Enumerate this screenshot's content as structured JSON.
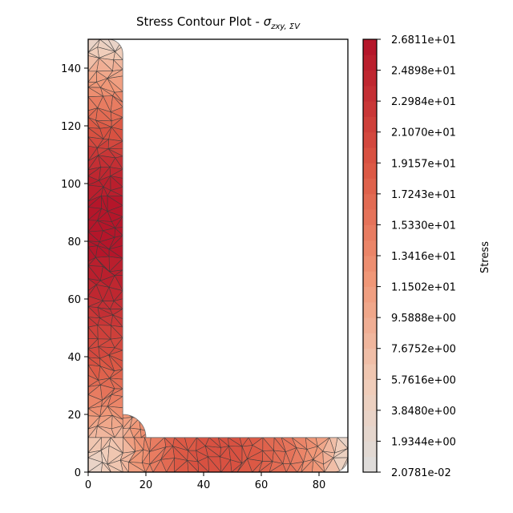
{
  "chart_data": {
    "type": "heatmap",
    "title": {
      "prefix": "Stress Contour Plot - ",
      "symbol": "σ",
      "subscript": "zxy, ΣV"
    },
    "xlabel": "",
    "ylabel": "",
    "xlim": [
      0,
      90
    ],
    "ylim": [
      0,
      150
    ],
    "x_ticks": [
      0,
      20,
      40,
      60,
      80
    ],
    "y_ticks": [
      0,
      20,
      40,
      60,
      80,
      100,
      120,
      140
    ],
    "section": {
      "shape": "L-angle",
      "leg_height": 150,
      "leg_width": 90,
      "thickness": 12,
      "root_radius": 8,
      "toe_radius": 5,
      "mesh_visible": true
    },
    "colorbar": {
      "label": "Stress",
      "ticks": [
        "2.0781e-02",
        "1.9344e+00",
        "3.8480e+00",
        "5.7616e+00",
        "7.6752e+00",
        "9.5888e+00",
        "1.1502e+01",
        "1.3416e+01",
        "1.5330e+01",
        "1.7243e+01",
        "1.9157e+01",
        "2.1070e+01",
        "2.2984e+01",
        "2.4898e+01",
        "2.6811e+01"
      ],
      "min": 0.020781,
      "max": 26.811,
      "levels": 28,
      "colormap": "coolwarm-upper (light grey to dark red)"
    },
    "stress_profile": {
      "vertical_leg": {
        "y": [
          0,
          10,
          20,
          30,
          40,
          50,
          60,
          70,
          80,
          90,
          100,
          110,
          120,
          130,
          140,
          150
        ],
        "stress": [
          2.5,
          6.5,
          12.0,
          16.5,
          20.0,
          22.0,
          24.0,
          25.5,
          26.2,
          26.2,
          25.5,
          22.5,
          18.5,
          14.0,
          9.0,
          2.5
        ]
      },
      "horizontal_leg": {
        "x": [
          0,
          10,
          20,
          30,
          40,
          50,
          60,
          70,
          80,
          90
        ],
        "stress": [
          2.5,
          8.5,
          13.5,
          18.5,
          19.5,
          19.5,
          18.0,
          15.5,
          11.5,
          2.5
        ]
      }
    }
  }
}
